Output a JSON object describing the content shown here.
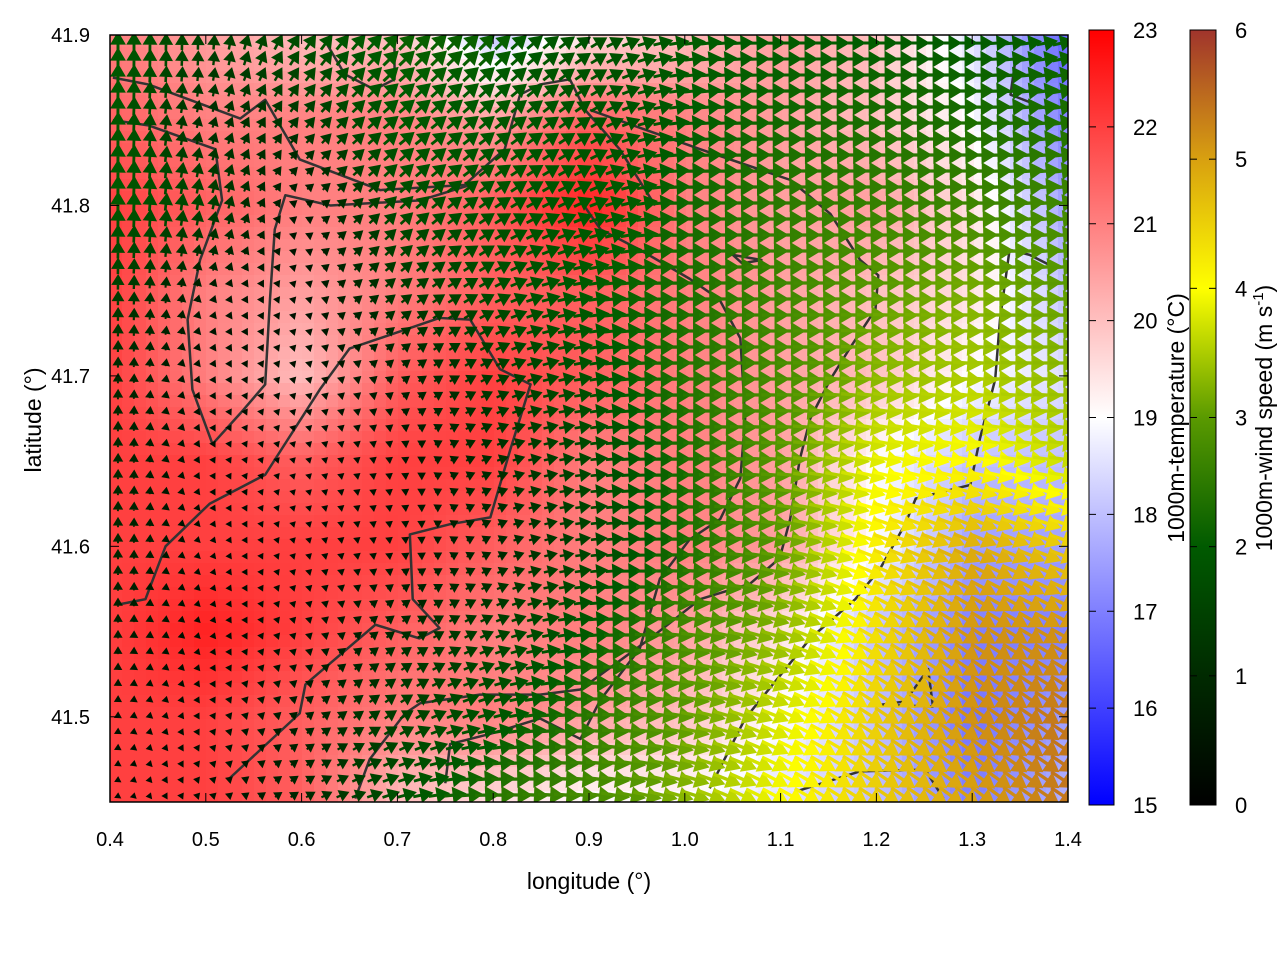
{
  "chart_data": {
    "type": "heatmap",
    "overlay": "vector-field with contour lines",
    "xlabel": "longitude (°)",
    "ylabel": "latitude (°)",
    "xlim": [
      0.4,
      1.4
    ],
    "ylim": [
      41.45,
      41.9
    ],
    "xticks": [
      "0.4",
      "0.5",
      "0.6",
      "0.7",
      "0.8",
      "0.9",
      "1.0",
      "1.1",
      "1.2",
      "1.3",
      "1.4"
    ],
    "yticks": [
      "41.5",
      "41.6",
      "41.7",
      "41.8",
      "41.9"
    ],
    "grid": false,
    "temperature": {
      "label": "1000m-temperature (°C)",
      "range": [
        15,
        23
      ],
      "ticks": [
        "15",
        "16",
        "17",
        "18",
        "19",
        "20",
        "21",
        "22",
        "23"
      ],
      "colormap": [
        [
          15,
          "#0000ff"
        ],
        [
          19,
          "#ffffff"
        ],
        [
          23,
          "#ff0000"
        ]
      ],
      "lon": [
        0.4,
        0.5,
        0.6,
        0.7,
        0.8,
        0.9,
        1.0,
        1.1,
        1.2,
        1.3,
        1.4
      ],
      "lat": [
        41.9,
        41.85,
        41.8,
        41.75,
        41.7,
        41.65,
        41.6,
        41.55,
        41.5,
        41.45
      ],
      "values": [
        [
          21,
          20.5,
          20,
          20,
          18,
          19.5,
          20,
          20.5,
          20,
          18.5,
          16.5
        ],
        [
          21.5,
          21,
          21,
          21,
          20.5,
          21.5,
          21,
          20.5,
          20,
          19,
          17
        ],
        [
          22,
          21.5,
          21,
          21,
          21.5,
          22.5,
          21,
          20.5,
          20.5,
          19.5,
          17.5
        ],
        [
          22,
          21,
          20.5,
          21,
          21.5,
          21.5,
          21,
          20.5,
          20,
          19.5,
          18
        ],
        [
          22,
          21,
          20,
          21.5,
          22,
          21.5,
          21,
          20.5,
          20,
          19,
          18.5
        ],
        [
          22,
          22,
          21.5,
          22,
          22,
          21,
          21,
          20.5,
          19,
          18,
          18
        ],
        [
          22,
          22,
          22,
          22,
          21.5,
          21,
          21,
          20.5,
          19,
          17.5,
          17.5
        ],
        [
          22,
          22.5,
          22,
          21.5,
          21,
          21,
          20.5,
          19.5,
          18,
          17,
          17
        ],
        [
          22,
          22,
          21.5,
          21,
          21,
          20.5,
          20,
          19,
          18,
          16.8,
          17.5
        ],
        [
          22,
          22,
          21.5,
          20,
          19.5,
          19,
          19,
          18.5,
          18,
          17,
          17.8
        ]
      ]
    },
    "wind": {
      "label": "1000m-wind speed (m s",
      "label_sup": "-1",
      "label_end": ")",
      "range": [
        0,
        6
      ],
      "ticks": [
        "0",
        "1",
        "2",
        "3",
        "4",
        "5",
        "6"
      ],
      "colormap": [
        [
          0,
          "#000000"
        ],
        [
          1,
          "#002a00"
        ],
        [
          2,
          "#005a00"
        ],
        [
          3,
          "#5a9a00"
        ],
        [
          4,
          "#ffff00"
        ],
        [
          5,
          "#d8a010"
        ],
        [
          6,
          "#a0342c"
        ]
      ],
      "u": [
        [
          0,
          0,
          1,
          1.5,
          1.5,
          1.5,
          2,
          2,
          2,
          2,
          2
        ],
        [
          0,
          0.3,
          0.8,
          1.5,
          1.5,
          1.5,
          2,
          2.2,
          2.3,
          2.3,
          2.3
        ],
        [
          0,
          0.3,
          0.5,
          1.2,
          1.5,
          1.8,
          2.2,
          2.5,
          2.6,
          2.7,
          2.7
        ],
        [
          0,
          0.2,
          0.3,
          1,
          1.5,
          2,
          2.3,
          2.7,
          3,
          3.2,
          3
        ],
        [
          0,
          0.2,
          0.3,
          0.6,
          1.2,
          1.8,
          2.4,
          2.8,
          3.3,
          3.5,
          3.3
        ],
        [
          0,
          0.2,
          0.2,
          0.4,
          1,
          1.6,
          2.3,
          3,
          3.8,
          4,
          3.6
        ],
        [
          0,
          0.1,
          0.2,
          0.4,
          0.8,
          1.5,
          2.3,
          3,
          4,
          4.5,
          4.3
        ],
        [
          0,
          0.1,
          0.3,
          0.8,
          1.3,
          2,
          2.8,
          3.2,
          3.8,
          4.3,
          4.5
        ],
        [
          0,
          0.2,
          0.6,
          1.2,
          1.8,
          2.5,
          3,
          3.5,
          3.8,
          4.2,
          4.5
        ],
        [
          0,
          0.3,
          0.8,
          1.8,
          2.5,
          2.8,
          3.2,
          3.5,
          3.8,
          4,
          4.5
        ]
      ],
      "v": [
        [
          2,
          1.5,
          1.5,
          1.5,
          1.5,
          1,
          0.3,
          0,
          0,
          0,
          0.5
        ],
        [
          2,
          1,
          1,
          1.2,
          1.2,
          1,
          0.2,
          0,
          0,
          0,
          0.3
        ],
        [
          2,
          1.5,
          0.3,
          1.2,
          1,
          0.8,
          0,
          0,
          0,
          0,
          0.3
        ],
        [
          1.5,
          0.6,
          0.3,
          0.8,
          0.8,
          0.3,
          0,
          0,
          0,
          0,
          0.2
        ],
        [
          1,
          0.4,
          0.3,
          0.5,
          0.6,
          0.3,
          0,
          0,
          -0.3,
          -0.3,
          0
        ],
        [
          1,
          0.3,
          0.2,
          0.3,
          0.4,
          0.2,
          0,
          -0.2,
          -0.8,
          -0.8,
          -0.5
        ],
        [
          1,
          0.3,
          0.2,
          0.3,
          0.4,
          0.2,
          0,
          -0.5,
          -1.5,
          -2,
          -1.5
        ],
        [
          0.8,
          0.3,
          0.3,
          0.6,
          0.6,
          0.2,
          -0.3,
          -1,
          -2.2,
          -2.8,
          -2.5
        ],
        [
          0.5,
          0.3,
          0.5,
          0.8,
          0.5,
          0,
          -0.5,
          -1.5,
          -2.5,
          -3,
          -3
        ],
        [
          0.3,
          0.3,
          0.5,
          0.5,
          0,
          -0.3,
          -1,
          -2,
          -2.5,
          -3,
          -3
        ]
      ]
    },
    "contours": {
      "color": "#333333",
      "lines": [
        [
          [
            0.403,
            41.875
          ],
          [
            0.44,
            41.871
          ],
          [
            0.536,
            41.851
          ],
          [
            0.562,
            41.862
          ],
          [
            0.598,
            41.827
          ],
          [
            0.682,
            41.809
          ],
          [
            0.77,
            41.812
          ],
          [
            0.812,
            41.833
          ],
          [
            0.828,
            41.865
          ],
          [
            0.849,
            41.871
          ],
          [
            0.88,
            41.874
          ],
          [
            0.896,
            41.856
          ],
          [
            0.932,
            41.833
          ],
          [
            0.969,
            41.8
          ]
        ],
        [
          [
            0.403,
            41.85
          ],
          [
            0.44,
            41.847
          ],
          [
            0.51,
            41.833
          ],
          [
            0.517,
            41.803
          ],
          [
            0.494,
            41.768
          ],
          [
            0.481,
            41.733
          ],
          [
            0.486,
            41.692
          ],
          [
            0.507,
            41.66
          ],
          [
            0.536,
            41.678
          ],
          [
            0.562,
            41.695
          ],
          [
            0.567,
            41.745
          ],
          [
            0.572,
            41.786
          ],
          [
            0.583,
            41.806
          ],
          [
            0.63,
            41.8
          ],
          [
            0.724,
            41.803
          ],
          [
            0.776,
            41.812
          ]
        ],
        [
          [
            0.41,
            41.566
          ],
          [
            0.437,
            41.569
          ],
          [
            0.458,
            41.6
          ],
          [
            0.504,
            41.625
          ],
          [
            0.562,
            41.642
          ],
          [
            0.619,
            41.692
          ],
          [
            0.65,
            41.716
          ],
          [
            0.744,
            41.734
          ],
          [
            0.776,
            41.733
          ],
          [
            0.807,
            41.704
          ],
          [
            0.839,
            41.695
          ],
          [
            0.818,
            41.657
          ],
          [
            0.797,
            41.617
          ],
          [
            0.755,
            41.613
          ],
          [
            0.713,
            41.607
          ],
          [
            0.716,
            41.569
          ],
          [
            0.744,
            41.552
          ],
          [
            0.723,
            41.546
          ],
          [
            0.677,
            41.554
          ],
          [
            0.604,
            41.519
          ],
          [
            0.598,
            41.502
          ],
          [
            0.525,
            41.464
          ]
        ],
        [
          [
            0.901,
            41.856
          ],
          [
            1.016,
            41.833
          ],
          [
            1.11,
            41.815
          ],
          [
            1.152,
            41.795
          ],
          [
            1.183,
            41.768
          ],
          [
            1.202,
            41.759
          ],
          [
            1.199,
            41.739
          ],
          [
            1.172,
            41.716
          ],
          [
            1.152,
            41.698
          ],
          [
            1.131,
            41.675
          ],
          [
            1.12,
            41.651
          ],
          [
            1.11,
            41.616
          ],
          [
            1.099,
            41.593
          ],
          [
            1.068,
            41.578
          ],
          [
            1.016,
            41.569
          ],
          [
            0.964,
            41.546
          ],
          [
            0.891,
            41.516
          ],
          [
            0.849,
            41.513
          ],
          [
            0.786,
            41.513
          ],
          [
            0.724,
            41.508
          ],
          [
            0.708,
            41.502
          ],
          [
            0.671,
            41.475
          ],
          [
            0.656,
            41.452
          ]
        ],
        [
          [
            0.891,
            41.803
          ],
          [
            0.912,
            41.786
          ],
          [
            0.953,
            41.774
          ],
          [
            1.005,
            41.757
          ],
          [
            1.036,
            41.745
          ],
          [
            1.058,
            41.722
          ],
          [
            1.063,
            41.675
          ],
          [
            1.058,
            41.64
          ],
          [
            1.037,
            41.616
          ],
          [
            1.005,
            41.604
          ],
          [
            0.974,
            41.581
          ],
          [
            0.953,
            41.54
          ],
          [
            0.912,
            41.51
          ],
          [
            0.891,
            41.487
          ],
          [
            0.849,
            41.499
          ],
          [
            0.797,
            41.49
          ],
          [
            0.755,
            41.484
          ],
          [
            0.75,
            41.461
          ]
        ],
        [
          [
            1.026,
            41.458
          ],
          [
            1.063,
            41.499
          ],
          [
            1.131,
            41.546
          ],
          [
            1.178,
            41.569
          ],
          [
            1.204,
            41.587
          ],
          [
            1.23,
            41.613
          ],
          [
            1.241,
            41.628
          ],
          [
            1.298,
            41.636
          ],
          [
            1.308,
            41.663
          ],
          [
            1.324,
            41.698
          ],
          [
            1.329,
            41.733
          ],
          [
            1.339,
            41.774
          ],
          [
            1.36,
            41.771
          ],
          [
            1.381,
            41.765
          ]
        ],
        [
          [
            1.115,
            41.456
          ],
          [
            1.183,
            41.468
          ],
          [
            1.251,
            41.469
          ],
          [
            1.27,
            41.452
          ]
        ],
        [
          [
            1.204,
            41.507
          ],
          [
            1.23,
            41.509
          ],
          [
            1.254,
            41.528
          ],
          [
            1.259,
            41.506
          ],
          [
            1.205,
            41.507
          ]
        ],
        [
          [
            0.624,
            41.897
          ],
          [
            0.645,
            41.877
          ],
          [
            0.676,
            41.868
          ],
          [
            0.697,
            41.874
          ],
          [
            0.697,
            41.897
          ]
        ],
        [
          [
            1.345,
            41.885
          ],
          [
            1.34,
            41.865
          ],
          [
            1.381,
            41.856
          ]
        ],
        [
          [
            1.05,
            41.771
          ],
          [
            1.08,
            41.768
          ],
          [
            1.06,
            41.766
          ],
          [
            1.05,
            41.771
          ]
        ]
      ]
    }
  }
}
